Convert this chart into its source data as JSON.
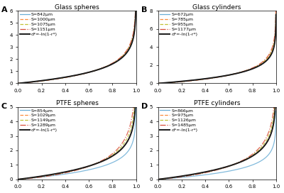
{
  "panels": [
    {
      "label": "A",
      "title": "Glass spheres",
      "legend": [
        "S=842μm",
        "S=1000μm",
        "S=1075μm",
        "S=1151μm",
        "d*=-ln(1-r*)"
      ],
      "colors": [
        "#6baed6",
        "#fd8d3c",
        "#c2c235",
        "#d94f3b",
        "#1a1a1a"
      ],
      "styles": [
        "-",
        "--",
        "--",
        "-.",
        "-"
      ],
      "linewidths": [
        0.9,
        0.9,
        0.9,
        0.9,
        1.4
      ],
      "ylim": [
        0,
        6
      ],
      "yticks": [
        0,
        1,
        2,
        3,
        4,
        5,
        6
      ],
      "curve_params": [
        {
          "scale": 1.0,
          "power": 1.0
        },
        {
          "scale": 1.0,
          "power": 1.03
        },
        {
          "scale": 1.0,
          "power": 1.055
        },
        {
          "scale": 1.0,
          "power": 1.08
        },
        {
          "scale": 1.0,
          "power": 1.0
        }
      ]
    },
    {
      "label": "B",
      "title": "Glass cylinders",
      "legend": [
        "S=672μm",
        "S=785μm",
        "S=955μm",
        "S=1177μm",
        "d*=-ln(1-r*)"
      ],
      "colors": [
        "#6baed6",
        "#fd8d3c",
        "#c2c235",
        "#d94f3b",
        "#1a1a1a"
      ],
      "styles": [
        "-",
        "--",
        "--",
        "-.",
        "-"
      ],
      "linewidths": [
        0.9,
        0.9,
        0.9,
        0.9,
        1.4
      ],
      "ylim": [
        0,
        8
      ],
      "yticks": [
        0,
        2,
        4,
        6,
        8
      ],
      "curve_params": [
        {
          "scale": 1.0,
          "power": 1.0
        },
        {
          "scale": 1.0,
          "power": 1.04
        },
        {
          "scale": 1.0,
          "power": 1.08
        },
        {
          "scale": 1.0,
          "power": 1.12
        },
        {
          "scale": 1.0,
          "power": 1.0
        }
      ]
    },
    {
      "label": "C",
      "title": "PTFE spheres",
      "legend": [
        "S=854μm",
        "S=1029μm",
        "S=1149μm",
        "S=1289μm",
        "d*=-ln(1-r*)"
      ],
      "colors": [
        "#6baed6",
        "#fd8d3c",
        "#c2c235",
        "#d94f3b",
        "#1a1a1a"
      ],
      "styles": [
        "-",
        "--",
        "--",
        "-.",
        "-"
      ],
      "linewidths": [
        0.9,
        0.9,
        0.9,
        0.9,
        1.4
      ],
      "ylim": [
        0,
        5
      ],
      "yticks": [
        0,
        1,
        2,
        3,
        4,
        5
      ],
      "curve_params": [
        {
          "scale": 0.72,
          "power": 1.0
        },
        {
          "scale": 1.0,
          "power": 1.0
        },
        {
          "scale": 1.0,
          "power": 1.1
        },
        {
          "scale": 1.0,
          "power": 1.2
        },
        {
          "scale": 1.0,
          "power": 1.0
        }
      ]
    },
    {
      "label": "D",
      "title": "PTFE cylinders",
      "legend": [
        "S=866μm",
        "S=975μm",
        "S=1126μm",
        "S=1485μm",
        "d*=-ln(1-r*)"
      ],
      "colors": [
        "#6baed6",
        "#fd8d3c",
        "#c2c235",
        "#d94f3b",
        "#1a1a1a"
      ],
      "styles": [
        "-",
        "--",
        "--",
        "-.",
        "-"
      ],
      "linewidths": [
        0.9,
        0.9,
        0.9,
        0.9,
        1.4
      ],
      "ylim": [
        0,
        5
      ],
      "yticks": [
        0,
        1,
        2,
        3,
        4,
        5
      ],
      "curve_params": [
        {
          "scale": 0.62,
          "power": 1.0
        },
        {
          "scale": 1.0,
          "power": 1.0
        },
        {
          "scale": 1.0,
          "power": 1.08
        },
        {
          "scale": 1.0,
          "power": 1.16
        },
        {
          "scale": 1.0,
          "power": 1.0
        }
      ]
    }
  ],
  "xlim": [
    0,
    1.0
  ],
  "xticks": [
    0.0,
    0.2,
    0.4,
    0.6,
    0.8,
    1.0
  ],
  "background": "#ffffff",
  "legend_fontsize": 4.5,
  "title_fontsize": 6.5,
  "tick_fontsize": 5,
  "label_fontsize": 8
}
